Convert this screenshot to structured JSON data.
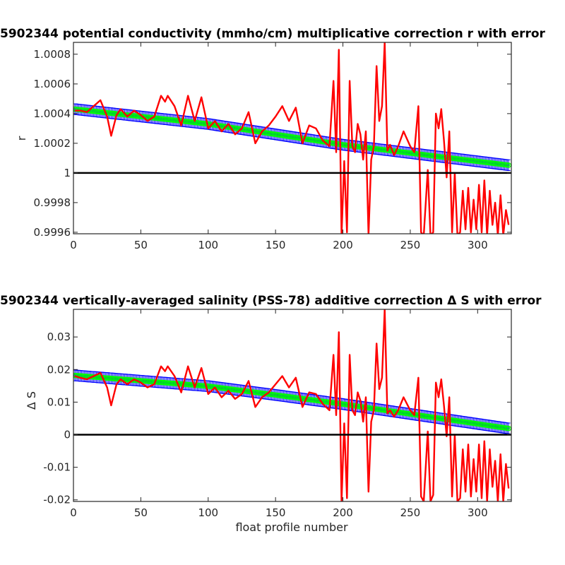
{
  "chart_data": [
    {
      "type": "line",
      "title": "5902344 potential conductivity (mmho/cm) multiplicative correction r with error",
      "xlabel": "",
      "ylabel": "r",
      "xlim": [
        0,
        325
      ],
      "ylim": [
        0.99959,
        1.00088
      ],
      "x_ticks": [
        "0",
        "50",
        "100",
        "150",
        "200",
        "250",
        "300"
      ],
      "y_ticks": [
        "0.9996",
        "0.9998",
        "1",
        "1.0002",
        "1.0004",
        "1.0006",
        "1.0008"
      ],
      "colors": {
        "raw": "#ff0000",
        "fit": "#00ff00",
        "error": "#0000ff",
        "reference": "#000000"
      },
      "grid": false,
      "reference_line": 1.0,
      "series": [
        {
          "name": "",
          "role": "fit",
          "x": [
            1,
            100,
            150,
            200,
            325
          ],
          "y": [
            1.00043,
            1.00033,
            1.00026,
            1.00019,
            1.00005
          ]
        },
        {
          "name": "",
          "role": "raw",
          "x": [
            1,
            5,
            10,
            15,
            20,
            25,
            28,
            32,
            35,
            40,
            45,
            50,
            55,
            60,
            65,
            68,
            70,
            75,
            80,
            85,
            90,
            95,
            100,
            105,
            110,
            115,
            120,
            125,
            130,
            135,
            140,
            145,
            150,
            155,
            160,
            165,
            170,
            175,
            180,
            185,
            190,
            193,
            195,
            197,
            199,
            201,
            203,
            205,
            207,
            209,
            211,
            213,
            215,
            217,
            219,
            221,
            223,
            225,
            227,
            229,
            231,
            233,
            235,
            238,
            241,
            245,
            250,
            253,
            256,
            258,
            260,
            263,
            265,
            267,
            269,
            271,
            273,
            275,
            277,
            279,
            281,
            283,
            285,
            287,
            289,
            291,
            293,
            295,
            297,
            299,
            301,
            303,
            305,
            307,
            309,
            311,
            313,
            315,
            317,
            319,
            321,
            323
          ],
          "y": [
            1.00042,
            1.00042,
            1.00041,
            1.00045,
            1.00049,
            1.00038,
            1.00025,
            1.00039,
            1.00043,
            1.00038,
            1.00042,
            1.00039,
            1.00035,
            1.00038,
            1.00052,
            1.00048,
            1.00052,
            1.00045,
            1.00032,
            1.00052,
            1.00035,
            1.00051,
            1.0003,
            1.00035,
            1.00028,
            1.00033,
            1.00026,
            1.0003,
            1.00041,
            1.0002,
            1.00028,
            1.00032,
            1.00038,
            1.00045,
            1.00035,
            1.00044,
            1.0002,
            1.00032,
            1.0003,
            1.00022,
            1.00018,
            1.00062,
            1.00014,
            1.00083,
            0.99958,
            1.00008,
            0.9996,
            1.00062,
            1.00018,
            1.00014,
            1.00033,
            1.00026,
            1.00009,
            1.00028,
            0.99958,
            1.00009,
            1.00018,
            1.00072,
            1.00035,
            1.00045,
            1.00088,
            1.00015,
            1.00019,
            1.00012,
            1.00018,
            1.00028,
            1.00018,
            1.00014,
            1.00045,
            0.9996,
            0.99958,
            1.00002,
            0.99958,
            0.9996,
            1.0004,
            1.0003,
            1.00043,
            1.00022,
            0.99997,
            1.00028,
            0.9996,
            1.0,
            0.99958,
            0.9996,
            0.99988,
            0.99962,
            0.9999,
            0.9996,
            0.99982,
            0.99962,
            0.99992,
            0.9996,
            0.99995,
            0.99958,
            0.99988,
            0.99965,
            0.9998,
            0.99958,
            0.99985,
            0.99958,
            0.99975,
            0.99965
          ]
        }
      ]
    },
    {
      "type": "line",
      "title": "5902344 vertically-averaged salinity (PSS-78) additive correction Δ S with error",
      "xlabel": "float profile number",
      "ylabel": "Δ S",
      "xlim": [
        0,
        325
      ],
      "ylim": [
        -0.0205,
        0.0385
      ],
      "x_ticks": [
        "0",
        "50",
        "100",
        "150",
        "200",
        "250",
        "300"
      ],
      "y_ticks": [
        "-0.02",
        "-0.01",
        "0",
        "0.01",
        "0.02",
        "0.03"
      ],
      "colors": {
        "raw": "#ff0000",
        "fit": "#00ff00",
        "error": "#0000ff",
        "reference": "#000000"
      },
      "grid": false,
      "reference_line": 0,
      "series": [
        {
          "name": "",
          "role": "fit",
          "x": [
            1,
            100,
            150,
            200,
            325
          ],
          "y": [
            0.0182,
            0.0149,
            0.0122,
            0.0094,
            0.0018
          ]
        },
        {
          "name": "",
          "role": "raw",
          "x": [
            1,
            5,
            10,
            15,
            20,
            25,
            28,
            32,
            35,
            40,
            45,
            50,
            55,
            60,
            65,
            68,
            70,
            75,
            80,
            85,
            90,
            95,
            100,
            105,
            110,
            115,
            120,
            125,
            130,
            135,
            140,
            145,
            150,
            155,
            160,
            165,
            170,
            175,
            180,
            185,
            190,
            193,
            195,
            197,
            199,
            201,
            203,
            205,
            207,
            209,
            211,
            213,
            215,
            217,
            219,
            221,
            223,
            225,
            227,
            229,
            231,
            233,
            235,
            238,
            241,
            245,
            250,
            253,
            256,
            258,
            260,
            263,
            265,
            267,
            269,
            271,
            273,
            275,
            277,
            279,
            281,
            283,
            285,
            287,
            289,
            291,
            293,
            295,
            297,
            299,
            301,
            303,
            305,
            307,
            309,
            311,
            313,
            315,
            317,
            319,
            321,
            323
          ],
          "y": [
            0.018,
            0.0175,
            0.017,
            0.018,
            0.019,
            0.0145,
            0.009,
            0.0155,
            0.017,
            0.0155,
            0.017,
            0.016,
            0.0145,
            0.0155,
            0.021,
            0.0195,
            0.021,
            0.018,
            0.013,
            0.021,
            0.0145,
            0.0205,
            0.0125,
            0.0145,
            0.0115,
            0.0135,
            0.011,
            0.0125,
            0.0165,
            0.0085,
            0.0115,
            0.013,
            0.0155,
            0.018,
            0.0145,
            0.0175,
            0.0085,
            0.013,
            0.0125,
            0.0095,
            0.0075,
            0.0245,
            0.006,
            0.0315,
            -0.0205,
            0.0035,
            -0.0195,
            0.0245,
            0.0075,
            0.006,
            0.013,
            0.0105,
            0.004,
            0.0115,
            -0.0175,
            0.004,
            0.0075,
            0.028,
            0.014,
            0.0175,
            0.0385,
            0.0065,
            0.0075,
            0.0055,
            0.0075,
            0.0115,
            0.0075,
            0.006,
            0.0175,
            -0.019,
            -0.0205,
            0.001,
            -0.0205,
            -0.0185,
            0.016,
            0.0115,
            0.017,
            0.009,
            -0.0005,
            0.0115,
            -0.019,
            0.0,
            -0.0205,
            -0.0195,
            -0.0045,
            -0.0175,
            -0.003,
            -0.019,
            -0.0075,
            -0.0175,
            -0.003,
            -0.0195,
            -0.002,
            -0.0205,
            -0.0045,
            -0.016,
            -0.008,
            -0.0205,
            -0.006,
            -0.0205,
            -0.009,
            -0.0165
          ]
        }
      ]
    }
  ]
}
